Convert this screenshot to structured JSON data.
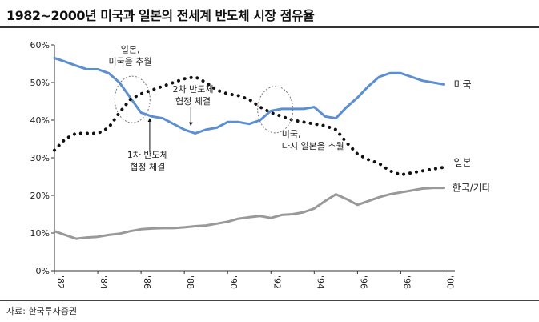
{
  "title": "1982~2000년 미국과 일본의 전세계 반도체 시장 점유율",
  "source": "자료: 한국투자증권",
  "colors": {
    "usa": "#5b8fd1",
    "japan": "#111111",
    "korea": "#999999"
  },
  "chart_data": {
    "type": "line",
    "title": "1982~2000년 미국과 일본의 전세계 반도체 시장 점유율",
    "xlabel": "",
    "ylabel": "",
    "xlim": [
      1982,
      2000.5
    ],
    "ylim": [
      0,
      60
    ],
    "grid": false,
    "x_ticks": [
      {
        "value": 1982,
        "label": "'82"
      },
      {
        "value": 1984,
        "label": "'84"
      },
      {
        "value": 1986,
        "label": "'86"
      },
      {
        "value": 1988,
        "label": "'88"
      },
      {
        "value": 1990,
        "label": "'90"
      },
      {
        "value": 1992,
        "label": "'92"
      },
      {
        "value": 1994,
        "label": "'94"
      },
      {
        "value": 1996,
        "label": "'96"
      },
      {
        "value": 1998,
        "label": "'98"
      },
      {
        "value": 2000,
        "label": "'00"
      }
    ],
    "y_ticks": [
      {
        "value": 0,
        "label": "0%"
      },
      {
        "value": 10,
        "label": "10%"
      },
      {
        "value": 20,
        "label": "20%"
      },
      {
        "value": 30,
        "label": "30%"
      },
      {
        "value": 40,
        "label": "40%"
      },
      {
        "value": 50,
        "label": "50%"
      },
      {
        "value": 60,
        "label": "60%"
      }
    ],
    "series": [
      {
        "name": "미국",
        "style": "solid",
        "color": "#5b8fd1",
        "points": [
          [
            1982,
            56.5
          ],
          [
            1982.5,
            55.5
          ],
          [
            1983,
            54.5
          ],
          [
            1983.5,
            53.5
          ],
          [
            1984,
            53.5
          ],
          [
            1984.5,
            52.5
          ],
          [
            1985,
            50
          ],
          [
            1985.5,
            46
          ],
          [
            1986,
            42
          ],
          [
            1986.5,
            41
          ],
          [
            1987,
            40.5
          ],
          [
            1987.5,
            39
          ],
          [
            1988,
            37.5
          ],
          [
            1988.5,
            36.5
          ],
          [
            1989,
            37.5
          ],
          [
            1989.5,
            38
          ],
          [
            1990,
            39.5
          ],
          [
            1990.5,
            39.5
          ],
          [
            1991,
            39
          ],
          [
            1991.5,
            40
          ],
          [
            1992,
            42.5
          ],
          [
            1992.5,
            43
          ],
          [
            1993,
            43
          ],
          [
            1993.5,
            43
          ],
          [
            1994,
            43.5
          ],
          [
            1994.5,
            41
          ],
          [
            1995,
            40.5
          ],
          [
            1995.5,
            43.5
          ],
          [
            1996,
            46
          ],
          [
            1996.5,
            49
          ],
          [
            1997,
            51.5
          ],
          [
            1997.5,
            52.5
          ],
          [
            1998,
            52.5
          ],
          [
            1998.5,
            51.5
          ],
          [
            1999,
            50.5
          ],
          [
            1999.5,
            50
          ],
          [
            2000,
            49.5
          ]
        ]
      },
      {
        "name": "일본",
        "style": "dotted",
        "color": "#111111",
        "points": [
          [
            1982,
            32
          ],
          [
            1982.5,
            35
          ],
          [
            1983,
            36.5
          ],
          [
            1983.5,
            36.5
          ],
          [
            1984,
            36.5
          ],
          [
            1984.5,
            38
          ],
          [
            1985,
            42
          ],
          [
            1985.5,
            45.5
          ],
          [
            1986,
            47
          ],
          [
            1986.5,
            48
          ],
          [
            1987,
            49
          ],
          [
            1987.5,
            50
          ],
          [
            1988,
            51
          ],
          [
            1988.5,
            51.5
          ],
          [
            1989,
            50
          ],
          [
            1989.5,
            48
          ],
          [
            1990,
            47
          ],
          [
            1990.5,
            46.5
          ],
          [
            1991,
            45.5
          ],
          [
            1991.5,
            43.5
          ],
          [
            1992,
            42
          ],
          [
            1992.5,
            41
          ],
          [
            1993,
            40
          ],
          [
            1993.5,
            39.5
          ],
          [
            1994,
            39
          ],
          [
            1994.5,
            38.5
          ],
          [
            1995,
            37.5
          ],
          [
            1995.5,
            34
          ],
          [
            1996,
            31
          ],
          [
            1996.5,
            29.5
          ],
          [
            1997,
            28.5
          ],
          [
            1997.5,
            26.5
          ],
          [
            1998,
            25.5
          ],
          [
            1998.5,
            26
          ],
          [
            1999,
            26.5
          ],
          [
            1999.5,
            27
          ],
          [
            2000,
            27.5
          ]
        ]
      },
      {
        "name": "한국/기타",
        "style": "solid",
        "color": "#999999",
        "points": [
          [
            1982,
            10.5
          ],
          [
            1982.5,
            9.5
          ],
          [
            1983,
            8.5
          ],
          [
            1983.5,
            8.8
          ],
          [
            1984,
            9
          ],
          [
            1984.5,
            9.5
          ],
          [
            1985,
            9.8
          ],
          [
            1985.5,
            10.5
          ],
          [
            1986,
            11
          ],
          [
            1986.5,
            11.2
          ],
          [
            1987,
            11.3
          ],
          [
            1987.5,
            11.3
          ],
          [
            1988,
            11.5
          ],
          [
            1988.5,
            11.8
          ],
          [
            1989,
            12
          ],
          [
            1989.5,
            12.5
          ],
          [
            1990,
            13
          ],
          [
            1990.5,
            13.8
          ],
          [
            1991,
            14.2
          ],
          [
            1991.5,
            14.5
          ],
          [
            1992,
            14
          ],
          [
            1992.5,
            14.8
          ],
          [
            1993,
            15
          ],
          [
            1993.5,
            15.5
          ],
          [
            1994,
            16.5
          ],
          [
            1994.5,
            18.5
          ],
          [
            1995,
            20.3
          ],
          [
            1995.5,
            19
          ],
          [
            1996,
            17.5
          ],
          [
            1996.5,
            18.5
          ],
          [
            1997,
            19.5
          ],
          [
            1997.5,
            20.3
          ],
          [
            1998,
            20.8
          ],
          [
            1998.5,
            21.3
          ],
          [
            1999,
            21.8
          ],
          [
            1999.5,
            22
          ],
          [
            2000,
            22
          ]
        ]
      }
    ],
    "annotations": [
      {
        "id": "japan-overtakes",
        "lines": [
          "일본,",
          "미국을 추월"
        ],
        "x": 1985.5,
        "y": 58
      },
      {
        "id": "agreement-1",
        "lines": [
          "1차 반도체",
          "협정 체결"
        ],
        "x": 1986.3,
        "y": 30
      },
      {
        "id": "agreement-2",
        "lines": [
          "2차 반도체",
          "협정 체결"
        ],
        "x": 1988.4,
        "y": 47.5
      },
      {
        "id": "usa-reovertakes",
        "lines": [
          "미국,",
          "다시 일본을 추월"
        ],
        "x": 1992.5,
        "y": 35.5
      }
    ]
  }
}
